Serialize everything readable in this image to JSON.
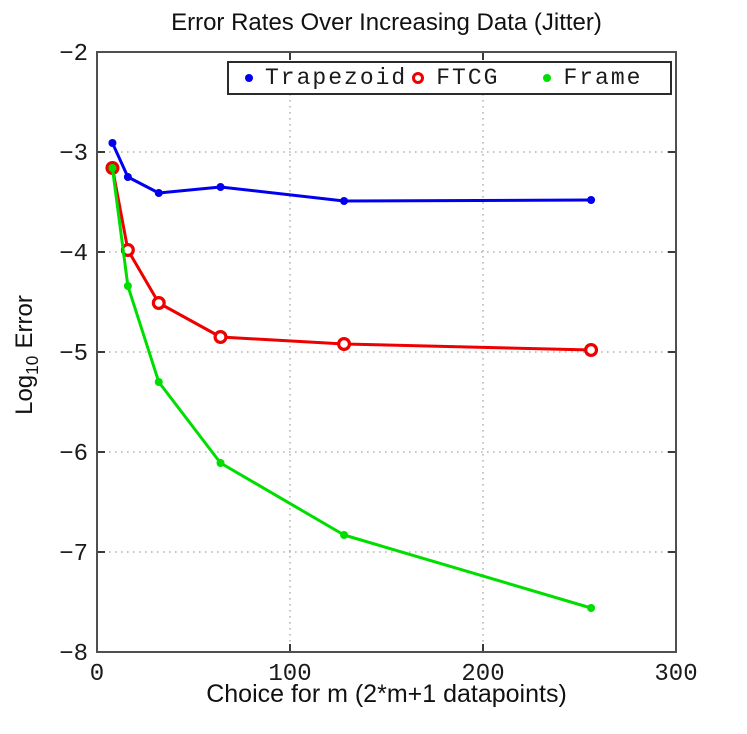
{
  "chart_data": {
    "type": "line",
    "title": "Error Rates Over Increasing Data (Jitter)",
    "xlabel": "Choice for m (2*m+1 datapoints)",
    "ylabel": "Log_10 Error",
    "ylabel_parts": {
      "pre": "Log",
      "sub": "10",
      "post": "Error"
    },
    "xlim": [
      0,
      300
    ],
    "ylim": [
      -8,
      -2
    ],
    "xticks": [
      0,
      100,
      200,
      300
    ],
    "xtick_labels": [
      "0",
      "100",
      "200",
      "300"
    ],
    "yticks": [
      -2,
      -3,
      -4,
      -5,
      -6,
      -7,
      -8
    ],
    "ytick_labels": [
      "−2",
      "−3",
      "−4",
      "−5",
      "−6",
      "−7",
      "−8"
    ],
    "grid": true,
    "grid_style": "dotted",
    "legend_position": "top-inside-horizontal",
    "x": [
      8,
      16,
      32,
      64,
      128,
      256
    ],
    "series": [
      {
        "name": "Trapezoid",
        "color": "#0000EE",
        "marker": "dot",
        "values": [
          -2.91,
          -3.25,
          -3.41,
          -3.35,
          -3.49,
          -3.48
        ]
      },
      {
        "name": "FTCG",
        "color": "#EE0000",
        "marker": "open-circle",
        "values": [
          -3.16,
          -3.98,
          -4.51,
          -4.85,
          -4.92,
          -4.98
        ]
      },
      {
        "name": "Frame",
        "color": "#00DE00",
        "marker": "dot",
        "values": [
          -3.16,
          -4.34,
          -5.3,
          -6.11,
          -6.83,
          -7.56
        ]
      }
    ]
  }
}
